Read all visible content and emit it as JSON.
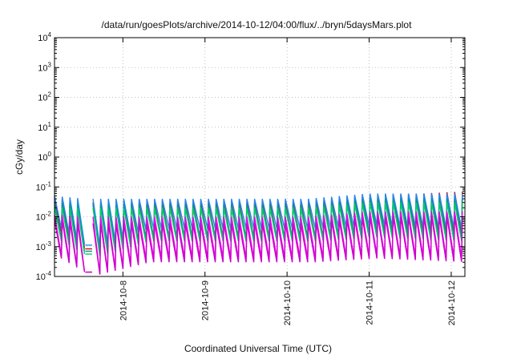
{
  "chart_data": {
    "type": "line",
    "title": "/data/run/goesPlots/archive/2014-10-12/04:00/flux/../bryn/5daysMars.plot",
    "xlabel": "Coordinated Universal Time (UTC)",
    "ylabel": "cGy/day",
    "y_scale": "log",
    "ylim": [
      0.0001,
      10000
    ],
    "y_ticks": [
      {
        "base": "10",
        "exp": "-4",
        "value": 0.0001
      },
      {
        "base": "10",
        "exp": "-3",
        "value": 0.001
      },
      {
        "base": "10",
        "exp": "-2",
        "value": 0.01
      },
      {
        "base": "10",
        "exp": "-1",
        "value": 0.1
      },
      {
        "base": "10",
        "exp": "0",
        "value": 1
      },
      {
        "base": "10",
        "exp": "1",
        "value": 10
      },
      {
        "base": "10",
        "exp": "2",
        "value": 100
      },
      {
        "base": "10",
        "exp": "3",
        "value": 1000
      },
      {
        "base": "10",
        "exp": "4",
        "value": 10000
      }
    ],
    "xlim": [
      "2014-10-07 04:00",
      "2014-10-12 04:00"
    ],
    "x_ticks": [
      {
        "label": "2014-10-8",
        "value": "2014-10-08 00:00"
      },
      {
        "label": "2014-10-9",
        "value": "2014-10-09 00:00"
      },
      {
        "label": "2014-10-10",
        "value": "2014-10-10 00:00"
      },
      {
        "label": "2014-10-11",
        "value": "2014-10-11 00:00"
      },
      {
        "label": "2014-10-12",
        "value": "2014-10-12 00:00"
      }
    ],
    "grid": true,
    "legend": "none",
    "data_gap": [
      "2014-10-07 13:00",
      "2014-10-07 15:00"
    ],
    "sawtooth_period_hours": 2.25,
    "series": [
      {
        "color": "#dd0000",
        "peaks": [
          0.04,
          0.03,
          0.03,
          0.03,
          0.03,
          0.05,
          0.07
        ],
        "troughs": [
          0.003,
          0.0006,
          0.002,
          0.002,
          0.002,
          0.003,
          0.003
        ]
      },
      {
        "color": "#2288ee",
        "peaks": [
          0.05,
          0.04,
          0.04,
          0.04,
          0.04,
          0.06,
          0.06
        ],
        "troughs": [
          0.004,
          0.0008,
          0.004,
          0.004,
          0.004,
          0.005,
          0.004
        ]
      },
      {
        "color": "#009999",
        "peaks": [
          0.03,
          0.025,
          0.025,
          0.025,
          0.025,
          0.04,
          0.04
        ],
        "troughs": [
          0.002,
          0.0005,
          0.002,
          0.002,
          0.002,
          0.003,
          0.002
        ]
      },
      {
        "color": "#00cc66",
        "peaks": [
          0.02,
          0.02,
          0.02,
          0.02,
          0.02,
          0.03,
          0.03
        ],
        "troughs": [
          0.0015,
          0.0004,
          0.0015,
          0.0015,
          0.0015,
          0.002,
          0.0015
        ]
      },
      {
        "color": "#ee00ee",
        "peaks": [
          0.012,
          0.01,
          0.01,
          0.01,
          0.01,
          0.015,
          0.015
        ],
        "troughs": [
          0.0005,
          0.0001,
          0.0004,
          0.0004,
          0.0004,
          0.0005,
          0.0004
        ]
      },
      {
        "color": "#cc00cc",
        "peaks": [
          0.008,
          0.006,
          0.006,
          0.006,
          0.006,
          0.01,
          0.01
        ],
        "troughs": [
          0.0004,
          0.0001,
          0.0003,
          0.0003,
          0.0003,
          0.0004,
          0.0003
        ]
      }
    ],
    "series_segment_times": [
      "2014-10-07 04:00",
      "2014-10-07 13:00",
      "2014-10-08 06:00",
      "2014-10-09 06:00",
      "2014-10-10 06:00",
      "2014-10-11 00:00",
      "2014-10-12 04:00"
    ]
  }
}
